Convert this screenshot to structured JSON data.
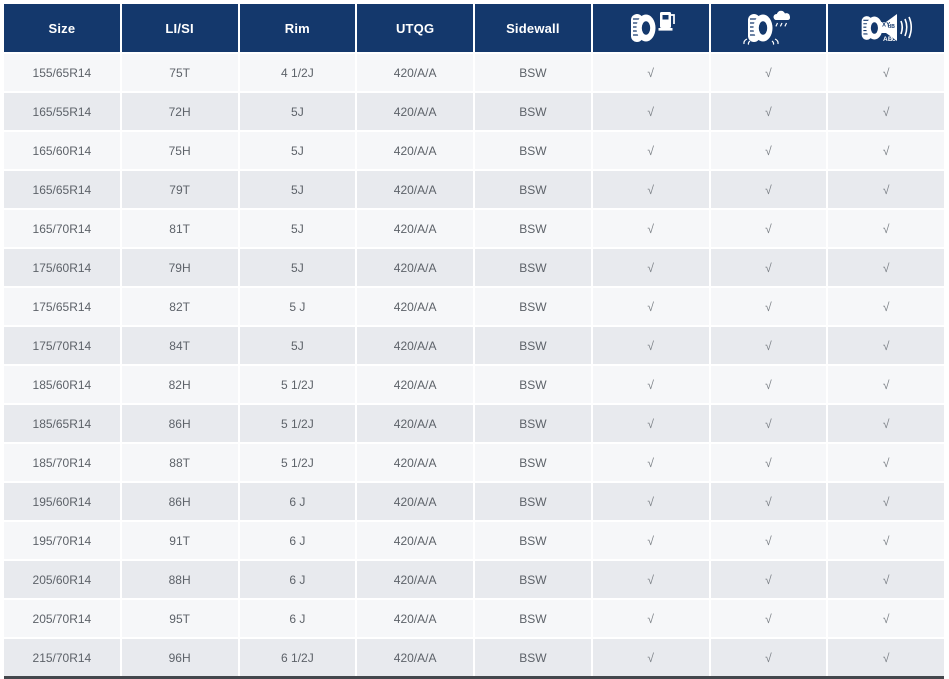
{
  "colors": {
    "header_bg": "#14386c",
    "row_odd_bg": "#f6f7f9",
    "row_even_bg": "#e8eaee",
    "cell_text": "#5d6269",
    "check_color": "#7a7f85",
    "separator": "#ffffff",
    "bottom_border": "#43474c"
  },
  "table": {
    "columns": [
      {
        "key": "size",
        "label": "Size",
        "type": "text"
      },
      {
        "key": "lisi",
        "label": "LI/SI",
        "type": "text"
      },
      {
        "key": "rim",
        "label": "Rim",
        "type": "text"
      },
      {
        "key": "utqg",
        "label": "UTQG",
        "type": "text"
      },
      {
        "key": "sidewall",
        "label": "Sidewall",
        "type": "text"
      },
      {
        "key": "fuel",
        "label": "",
        "type": "icon",
        "icon": "fuel-efficiency-icon"
      },
      {
        "key": "wet",
        "label": "",
        "type": "icon",
        "icon": "wet-grip-icon"
      },
      {
        "key": "noise",
        "label": "",
        "type": "icon",
        "icon": "noise-level-icon"
      }
    ],
    "noise_icon_text": {
      "db_label": "XY dB",
      "class_label": "AB C"
    },
    "check_glyph": "√",
    "rows": [
      {
        "size": "155/65R14",
        "lisi": "75T",
        "rim": "4 1/2J",
        "utqg": "420/A/A",
        "sidewall": "BSW",
        "fuel": "√",
        "wet": "√",
        "noise": "√"
      },
      {
        "size": "165/55R14",
        "lisi": "72H",
        "rim": "5J",
        "utqg": "420/A/A",
        "sidewall": "BSW",
        "fuel": "√",
        "wet": "√",
        "noise": "√"
      },
      {
        "size": "165/60R14",
        "lisi": "75H",
        "rim": "5J",
        "utqg": "420/A/A",
        "sidewall": "BSW",
        "fuel": "√",
        "wet": "√",
        "noise": "√"
      },
      {
        "size": "165/65R14",
        "lisi": "79T",
        "rim": "5J",
        "utqg": "420/A/A",
        "sidewall": "BSW",
        "fuel": "√",
        "wet": "√",
        "noise": "√"
      },
      {
        "size": "165/70R14",
        "lisi": "81T",
        "rim": "5J",
        "utqg": "420/A/A",
        "sidewall": "BSW",
        "fuel": "√",
        "wet": "√",
        "noise": "√"
      },
      {
        "size": "175/60R14",
        "lisi": "79H",
        "rim": "5J",
        "utqg": "420/A/A",
        "sidewall": "BSW",
        "fuel": "√",
        "wet": "√",
        "noise": "√"
      },
      {
        "size": "175/65R14",
        "lisi": "82T",
        "rim": "5 J",
        "utqg": "420/A/A",
        "sidewall": "BSW",
        "fuel": "√",
        "wet": "√",
        "noise": "√"
      },
      {
        "size": "175/70R14",
        "lisi": "84T",
        "rim": "5J",
        "utqg": "420/A/A",
        "sidewall": "BSW",
        "fuel": "√",
        "wet": "√",
        "noise": "√"
      },
      {
        "size": "185/60R14",
        "lisi": "82H",
        "rim": "5 1/2J",
        "utqg": "420/A/A",
        "sidewall": "BSW",
        "fuel": "√",
        "wet": "√",
        "noise": "√"
      },
      {
        "size": "185/65R14",
        "lisi": "86H",
        "rim": "5 1/2J",
        "utqg": "420/A/A",
        "sidewall": "BSW",
        "fuel": "√",
        "wet": "√",
        "noise": "√"
      },
      {
        "size": "185/70R14",
        "lisi": "88T",
        "rim": "5 1/2J",
        "utqg": "420/A/A",
        "sidewall": "BSW",
        "fuel": "√",
        "wet": "√",
        "noise": "√"
      },
      {
        "size": "195/60R14",
        "lisi": "86H",
        "rim": "6 J",
        "utqg": "420/A/A",
        "sidewall": "BSW",
        "fuel": "√",
        "wet": "√",
        "noise": "√"
      },
      {
        "size": "195/70R14",
        "lisi": "91T",
        "rim": "6 J",
        "utqg": "420/A/A",
        "sidewall": "BSW",
        "fuel": "√",
        "wet": "√",
        "noise": "√"
      },
      {
        "size": "205/60R14",
        "lisi": "88H",
        "rim": "6 J",
        "utqg": "420/A/A",
        "sidewall": "BSW",
        "fuel": "√",
        "wet": "√",
        "noise": "√"
      },
      {
        "size": "205/70R14",
        "lisi": "95T",
        "rim": "6 J",
        "utqg": "420/A/A",
        "sidewall": "BSW",
        "fuel": "√",
        "wet": "√",
        "noise": "√"
      },
      {
        "size": "215/70R14",
        "lisi": "96H",
        "rim": "6 1/2J",
        "utqg": "420/A/A",
        "sidewall": "BSW",
        "fuel": "√",
        "wet": "√",
        "noise": "√"
      }
    ]
  }
}
